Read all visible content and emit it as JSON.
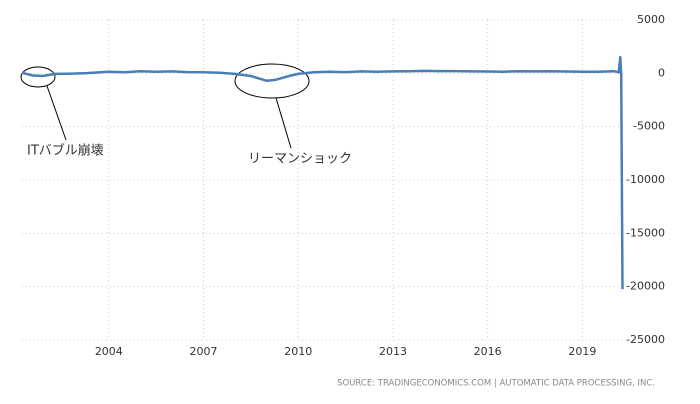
{
  "chart_data": {
    "type": "line",
    "x": [
      2001.25,
      2001.6,
      2001.9,
      2002.3,
      2002.7,
      2003.3,
      2004,
      2004.5,
      2005,
      2005.5,
      2006,
      2006.5,
      2007,
      2007.5,
      2008,
      2008.5,
      2009.0,
      2009.3,
      2009.7,
      2010,
      2010.5,
      2011,
      2011.5,
      2012,
      2012.5,
      2013,
      2013.5,
      2014,
      2014.5,
      2015,
      2015.5,
      2016,
      2016.5,
      2017,
      2017.5,
      2018,
      2018.5,
      2019,
      2019.5,
      2020.0,
      2020.15,
      2020.2,
      2020.23,
      2020.27
    ],
    "values": [
      50,
      -200,
      -250,
      -50,
      -30,
      20,
      150,
      100,
      200,
      150,
      180,
      120,
      100,
      60,
      -50,
      -250,
      -700,
      -600,
      -250,
      -50,
      100,
      150,
      120,
      180,
      150,
      180,
      200,
      230,
      210,
      210,
      180,
      170,
      150,
      200,
      180,
      200,
      170,
      150,
      140,
      200,
      100,
      1500,
      -150,
      -20236
    ],
    "color": "#4a7fb5",
    "xlim": [
      2001.25,
      2020.35
    ],
    "xticks": [
      2004,
      2007,
      2010,
      2013,
      2016,
      2019
    ],
    "ylim": [
      -25000,
      5000
    ],
    "yticks": [
      5000,
      0,
      -5000,
      -10000,
      -15000,
      -20000,
      -25000
    ],
    "grid": true,
    "annotations": [
      "ITバブル崩壊",
      "リーマンショック"
    ],
    "source": "SOURCE: TRADINGECONOMICS.COM  |  AUTOMATIC DATA PROCESSING, INC."
  }
}
